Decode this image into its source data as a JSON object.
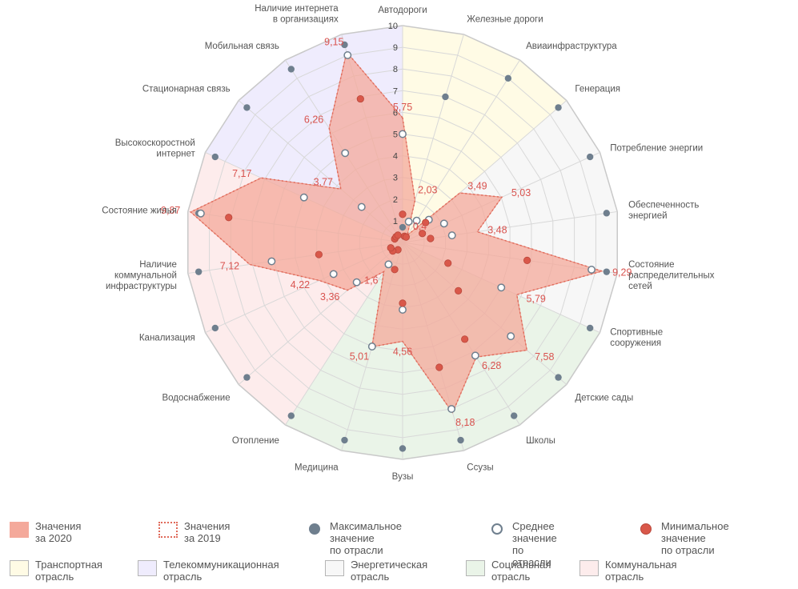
{
  "chart_data": {
    "type": "radar",
    "r_range": [
      0,
      10
    ],
    "ticks": [
      "1",
      "2",
      "3",
      "4",
      "5",
      "6",
      "7",
      "8",
      "9",
      "10"
    ],
    "axes": [
      {
        "label": "Автодороги",
        "sector": 0
      },
      {
        "label": "Железные дороги",
        "sector": 0
      },
      {
        "label": "Авиаинфраструктура",
        "sector": 0
      },
      {
        "label": "Генерация",
        "sector": 2
      },
      {
        "label": "Потребление энергии",
        "sector": 2
      },
      {
        "label": "Обеспеченность\nэнергией",
        "sector": 2
      },
      {
        "label": "Состояние\nраспределительных\nсетей",
        "sector": 2
      },
      {
        "label": "Спортивные\nсооружения",
        "sector": 3
      },
      {
        "label": "Детские сады",
        "sector": 3
      },
      {
        "label": "Школы",
        "sector": 3
      },
      {
        "label": "Ссузы",
        "sector": 3
      },
      {
        "label": "Вузы",
        "sector": 3
      },
      {
        "label": "Медицина",
        "sector": 3
      },
      {
        "label": "Отопление",
        "sector": 4
      },
      {
        "label": "Водоснабжение",
        "sector": 4
      },
      {
        "label": "Канализация",
        "sector": 4
      },
      {
        "label": "Наличие\nкоммунальной\nинфраструктуры",
        "sector": 4
      },
      {
        "label": "Состояние жилья",
        "sector": 4
      },
      {
        "label": "Высокоскоростной\nинтернет",
        "sector": 1
      },
      {
        "label": "Стационарная связь",
        "sector": 1
      },
      {
        "label": "Мобильная связь",
        "sector": 1
      },
      {
        "label": "Наличие интернета\nв организациях",
        "sector": 1
      }
    ],
    "sectors": [
      {
        "name": "Транспортная\nотрасль",
        "color": "#fffbe5"
      },
      {
        "name": "Телекоммуникационная\nотрасль",
        "color": "#efecfd"
      },
      {
        "name": "Энергетическая\nотрасль",
        "color": "#f7f7f7"
      },
      {
        "name": "Социальная\nотрасль",
        "color": "#eaf4e8"
      },
      {
        "name": "Коммунальная\nотрасль",
        "color": "#fdecec"
      }
    ],
    "series": [
      {
        "name": "Значения за 2020",
        "values": [
          5.75,
          2.03,
          0.4,
          3.49,
          5.03,
          3.48,
          9.29,
          5.79,
          7.58,
          6.28,
          8.18,
          4.56,
          5.01,
          1.6,
          3.36,
          4.22,
          7.12,
          9.87,
          7.17,
          3.77,
          6.26,
          9.15
        ],
        "color": "#f4a99b"
      },
      {
        "name": "Значения за 2019",
        "values": [
          5.75,
          2.03,
          0.4,
          3.49,
          5.03,
          3.48,
          9.29,
          5.79,
          7.58,
          6.28,
          8.18,
          4.56,
          5.01,
          1.6,
          3.36,
          4.22,
          7.12,
          9.87,
          7.17,
          3.77,
          6.26,
          9.15
        ],
        "color": "#e06a5a"
      },
      {
        "name": "Максимальное значение\nпо отрасли",
        "values": [
          0.7,
          7.0,
          9.0,
          9.5,
          9.5,
          9.5,
          9.5,
          9.5,
          9.5,
          9.5,
          9.5,
          9.5,
          9.5,
          9.5,
          9.5,
          9.5,
          9.5,
          9.5,
          9.5,
          9.5,
          9.5,
          9.5
        ],
        "color": "#6f7f8e"
      },
      {
        "name": "Среднее значение\nпо отрасли",
        "values": [
          5.0,
          1.0,
          1.2,
          1.6,
          2.1,
          2.3,
          8.8,
          5.0,
          6.6,
          6.2,
          8.0,
          3.1,
          5.0,
          1.2,
          2.8,
          3.5,
          6.1,
          9.4,
          5.0,
          2.5,
          4.9,
          9.0
        ],
        "color": "#6f7f8e"
      },
      {
        "name": "Минимальное значение\nпо отрасли",
        "values": [
          1.3,
          0.3,
          0.3,
          1.4,
          1.0,
          1.3,
          5.8,
          2.3,
          3.4,
          5.3,
          6.0,
          2.8,
          1.3,
          0.4,
          0.6,
          0.6,
          3.9,
          8.1,
          0.4,
          0.4,
          0.4,
          6.9
        ],
        "color": "#d9584a"
      }
    ],
    "value_labels": [
      "5,75",
      "2,03",
      "0,4",
      "3,49",
      "5,03",
      "3,48",
      "9,29",
      "5,79",
      "7,58",
      "6,28",
      "8,18",
      "4,56",
      "5,01",
      "1,6",
      "3,36",
      "4,22",
      "7,12",
      "9,87",
      "7,17",
      "3,77",
      "6,26",
      "9,15"
    ]
  },
  "legend": {
    "row1": [
      {
        "label": "Значения за 2020",
        "kind": "fill"
      },
      {
        "label": "Значения за 2019",
        "kind": "dotted"
      },
      {
        "label": "Максимальное значение\nпо отрасли",
        "kind": "max"
      },
      {
        "label": "Среднее значение\nпо отрасли",
        "kind": "avg"
      },
      {
        "label": "Минимальное значение\nпо отрасли",
        "kind": "min"
      }
    ],
    "row2": [
      {
        "label": "Транспортная\nотрасль",
        "color": "#fffbe5"
      },
      {
        "label": "Телекоммуникационная\nотрасль",
        "color": "#efecfd"
      },
      {
        "label": "Энергетическая\nотрасль",
        "color": "#f7f7f7"
      },
      {
        "label": "Социальная\nотрасль",
        "color": "#eaf4e8"
      },
      {
        "label": "Коммунальная\nотрасль",
        "color": "#fdecec"
      }
    ]
  }
}
